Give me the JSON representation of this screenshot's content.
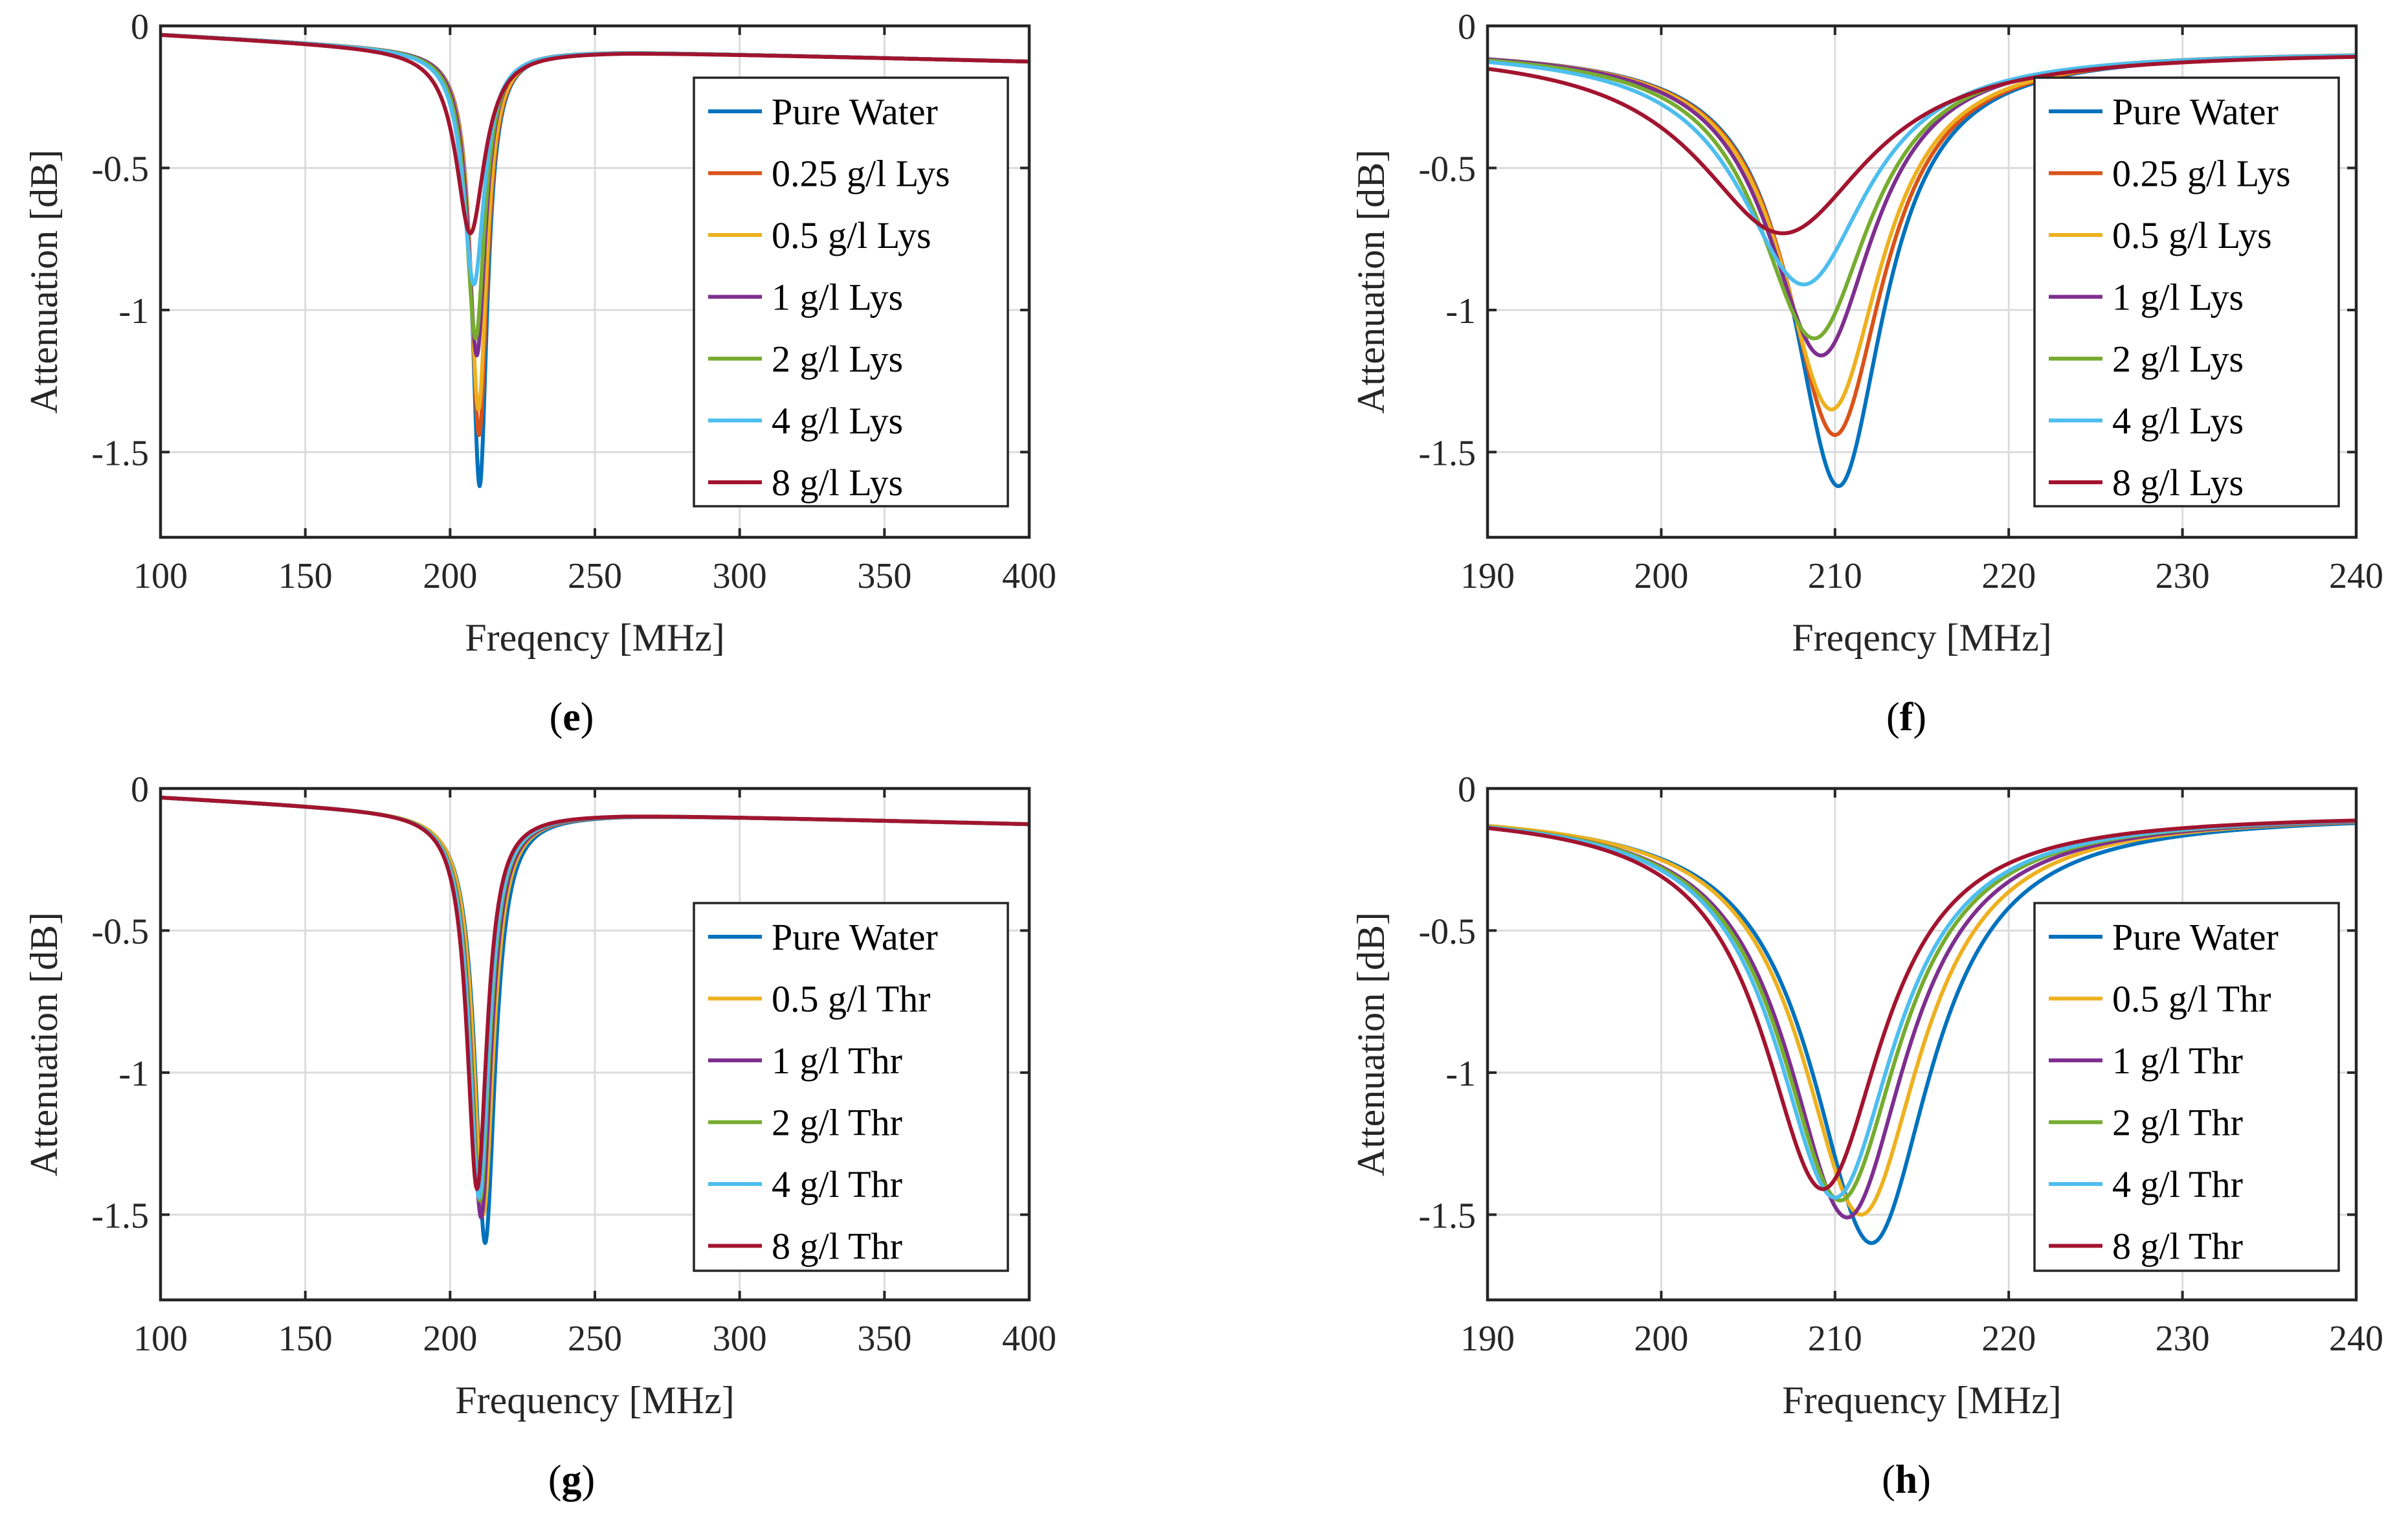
{
  "chart_data": [
    {
      "panel": "e",
      "type": "line",
      "xlabel": "Freqency [MHz]",
      "ylabel": "Attenuation [dB]",
      "xlim": [
        100,
        400
      ],
      "ylim": [
        -1.8,
        0
      ],
      "xticks": [
        100,
        150,
        200,
        250,
        300,
        350,
        400
      ],
      "yticks": [
        0,
        -0.5,
        -1,
        -1.5
      ],
      "ytick_labels": [
        "0",
        "-0.5",
        "-1",
        "-1.5"
      ],
      "legend_position": "right",
      "series": [
        {
          "name": "Pure Water",
          "color": "#0072BD",
          "dip_freq": 210.2,
          "dip_depth": -1.62,
          "width": 3.2
        },
        {
          "name": "0.25 g/l Lys",
          "color": "#D95319",
          "dip_freq": 210.0,
          "dip_depth": -1.44,
          "width": 3.4
        },
        {
          "name": "0.5 g/l Lys",
          "color": "#EDB120",
          "dip_freq": 209.8,
          "dip_depth": -1.35,
          "width": 3.5
        },
        {
          "name": "1 g/l Lys",
          "color": "#7E2F8E",
          "dip_freq": 209.2,
          "dip_depth": -1.16,
          "width": 3.7
        },
        {
          "name": "2 g/l Lys",
          "color": "#77AC30",
          "dip_freq": 208.8,
          "dip_depth": -1.1,
          "width": 3.9
        },
        {
          "name": "4 g/l Lys",
          "color": "#4DBEEE",
          "dip_freq": 208.2,
          "dip_depth": -0.91,
          "width": 4.5
        },
        {
          "name": "8 g/l Lys",
          "color": "#A2142F",
          "dip_freq": 207.0,
          "dip_depth": -0.73,
          "width": 6.0
        }
      ]
    },
    {
      "panel": "f",
      "type": "line",
      "xlabel": "Freqency [MHz]",
      "ylabel": "Attenuation [dB]",
      "xlim": [
        190,
        240
      ],
      "ylim": [
        -1.8,
        0
      ],
      "xticks": [
        190,
        200,
        210,
        220,
        230,
        240
      ],
      "yticks": [
        0,
        -0.5,
        -1,
        -1.5
      ],
      "ytick_labels": [
        "0",
        "-0.5",
        "-1",
        "-1.5"
      ],
      "legend_position": "right",
      "series": [
        {
          "name": "Pure Water",
          "color": "#0072BD",
          "dip_freq": 210.2,
          "dip_depth": -1.62,
          "width": 3.2
        },
        {
          "name": "0.25 g/l Lys",
          "color": "#D95319",
          "dip_freq": 210.0,
          "dip_depth": -1.44,
          "width": 3.4
        },
        {
          "name": "0.5 g/l Lys",
          "color": "#EDB120",
          "dip_freq": 209.8,
          "dip_depth": -1.35,
          "width": 3.5
        },
        {
          "name": "1 g/l Lys",
          "color": "#7E2F8E",
          "dip_freq": 209.2,
          "dip_depth": -1.16,
          "width": 3.7
        },
        {
          "name": "2 g/l Lys",
          "color": "#77AC30",
          "dip_freq": 208.8,
          "dip_depth": -1.1,
          "width": 3.9
        },
        {
          "name": "4 g/l Lys",
          "color": "#4DBEEE",
          "dip_freq": 208.2,
          "dip_depth": -0.91,
          "width": 4.5
        },
        {
          "name": "8 g/l Lys",
          "color": "#A2142F",
          "dip_freq": 207.0,
          "dip_depth": -0.73,
          "width": 6.0
        }
      ]
    },
    {
      "panel": "g",
      "type": "line",
      "xlabel": "Frequency [MHz]",
      "ylabel": "Attenuation [dB]",
      "xlim": [
        100,
        400
      ],
      "ylim": [
        -1.8,
        0
      ],
      "xticks": [
        100,
        150,
        200,
        250,
        300,
        350,
        400
      ],
      "yticks": [
        0,
        -0.5,
        -1,
        -1.5
      ],
      "ytick_labels": [
        "0",
        "-0.5",
        "-1",
        "-1.5"
      ],
      "legend_position": "right",
      "series": [
        {
          "name": "Pure Water",
          "color": "#0072BD",
          "dip_freq": 212.1,
          "dip_depth": -1.6,
          "width": 4.2
        },
        {
          "name": "0.5 g/l Thr",
          "color": "#EDB120",
          "dip_freq": 211.5,
          "dip_depth": -1.5,
          "width": 4.2
        },
        {
          "name": "1 g/l Thr",
          "color": "#7E2F8E",
          "dip_freq": 210.7,
          "dip_depth": -1.51,
          "width": 4.2
        },
        {
          "name": "2 g/l Thr",
          "color": "#77AC30",
          "dip_freq": 210.3,
          "dip_depth": -1.45,
          "width": 4.2
        },
        {
          "name": "4 g/l Thr",
          "color": "#4DBEEE",
          "dip_freq": 210.0,
          "dip_depth": -1.44,
          "width": 4.2
        },
        {
          "name": "8 g/l Thr",
          "color": "#A2142F",
          "dip_freq": 209.3,
          "dip_depth": -1.41,
          "width": 4.2
        }
      ]
    },
    {
      "panel": "h",
      "type": "line",
      "xlabel": "Frequency [MHz]",
      "ylabel": "Attenuation [dB]",
      "xlim": [
        190,
        240
      ],
      "ylim": [
        -1.8,
        0
      ],
      "xticks": [
        190,
        200,
        210,
        220,
        230,
        240
      ],
      "yticks": [
        0,
        -0.5,
        -1,
        -1.5
      ],
      "ytick_labels": [
        "0",
        "-0.5",
        "-1",
        "-1.5"
      ],
      "legend_position": "right",
      "series": [
        {
          "name": "Pure Water",
          "color": "#0072BD",
          "dip_freq": 212.1,
          "dip_depth": -1.6,
          "width": 4.2
        },
        {
          "name": "0.5 g/l Thr",
          "color": "#EDB120",
          "dip_freq": 211.5,
          "dip_depth": -1.5,
          "width": 4.2
        },
        {
          "name": "1 g/l Thr",
          "color": "#7E2F8E",
          "dip_freq": 210.7,
          "dip_depth": -1.51,
          "width": 4.2
        },
        {
          "name": "2 g/l Thr",
          "color": "#77AC30",
          "dip_freq": 210.3,
          "dip_depth": -1.45,
          "width": 4.2
        },
        {
          "name": "4 g/l Thr",
          "color": "#4DBEEE",
          "dip_freq": 210.0,
          "dip_depth": -1.44,
          "width": 4.2
        },
        {
          "name": "8 g/l Thr",
          "color": "#A2142F",
          "dip_freq": 209.3,
          "dip_depth": -1.41,
          "width": 4.2
        }
      ]
    }
  ],
  "panel_tags": [
    "(e)",
    "(f)",
    "(g)",
    "(h)"
  ]
}
